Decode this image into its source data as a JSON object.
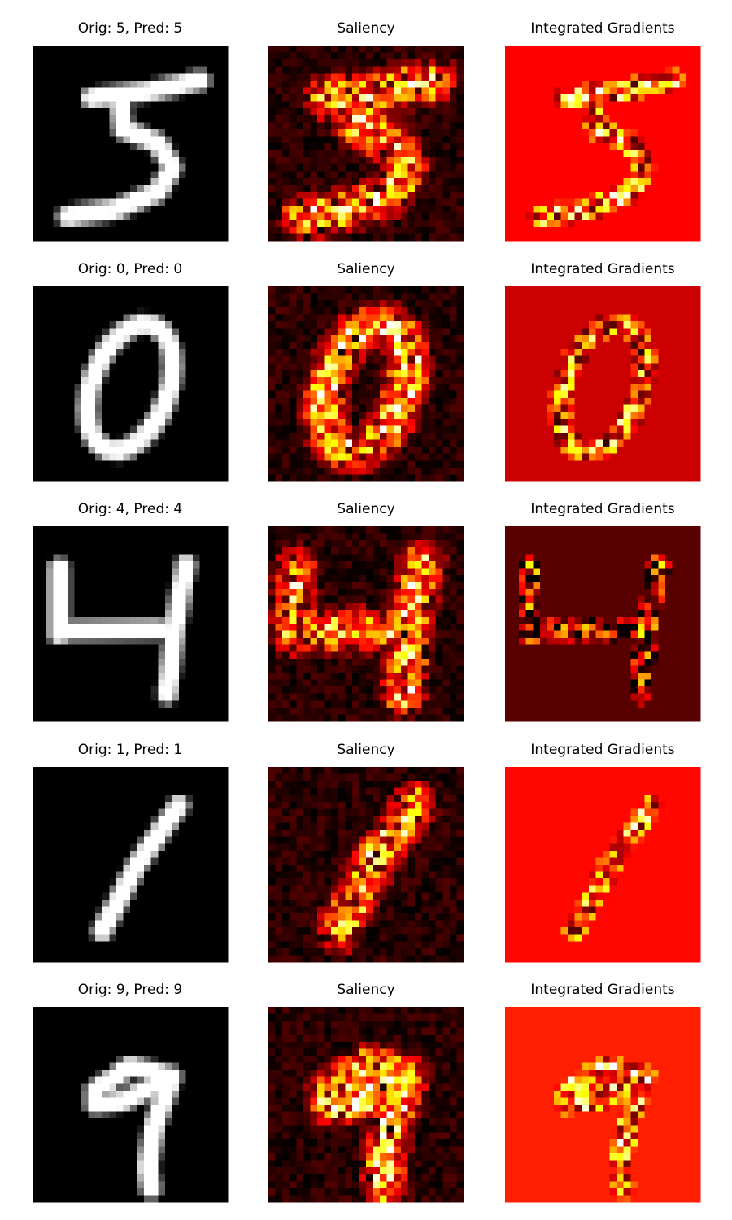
{
  "rows": [
    {
      "original_title": "Orig: 5, Pred: 5",
      "saliency_title": "Saliency",
      "ig_title": "Integrated Gradients"
    },
    {
      "original_title": "Orig: 0, Pred: 0",
      "saliency_title": "Saliency",
      "ig_title": "Integrated Gradients"
    },
    {
      "original_title": "Orig: 4, Pred: 4",
      "saliency_title": "Saliency",
      "ig_title": "Integrated Gradients"
    },
    {
      "original_title": "Orig: 1, Pred: 1",
      "saliency_title": "Saliency",
      "ig_title": "Integrated Gradients"
    },
    {
      "original_title": "Orig: 9, Pred: 9",
      "saliency_title": "Saliency",
      "ig_title": "Integrated Gradients"
    }
  ]
}
